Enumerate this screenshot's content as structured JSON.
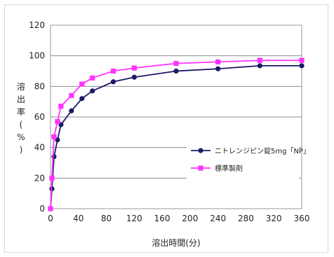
{
  "chart_data": {
    "type": "line",
    "xlabel": "溶出時間(分)",
    "ylabel_chars": [
      "溶",
      "出",
      "率",
      "(",
      "%",
      ")"
    ],
    "xlim": [
      0,
      360
    ],
    "ylim": [
      0,
      120
    ],
    "x_ticks": [
      0,
      40,
      80,
      120,
      160,
      200,
      240,
      280,
      320,
      360
    ],
    "y_ticks": [
      0,
      20,
      40,
      60,
      80,
      100,
      120
    ],
    "grid": "horizontal",
    "legend_position": "inside-right",
    "series": [
      {
        "name": "ニトレンジピン錠5mg「NP」",
        "color": "#1a1a66",
        "marker": "circle",
        "x": [
          0,
          2,
          5,
          10,
          15,
          30,
          45,
          60,
          90,
          120,
          180,
          240,
          300,
          360
        ],
        "y": [
          0,
          13,
          34,
          45,
          55,
          64,
          72,
          77,
          83,
          86,
          90,
          91.5,
          93.5,
          93.5
        ]
      },
      {
        "name": "標準製剤",
        "color": "#ff33ff",
        "marker": "square",
        "x": [
          0,
          2,
          5,
          10,
          15,
          30,
          45,
          60,
          90,
          120,
          180,
          240,
          300,
          360
        ],
        "y": [
          0,
          20,
          47,
          57,
          67,
          74,
          81.5,
          85.5,
          90,
          92,
          95,
          96,
          97,
          97
        ]
      }
    ]
  }
}
